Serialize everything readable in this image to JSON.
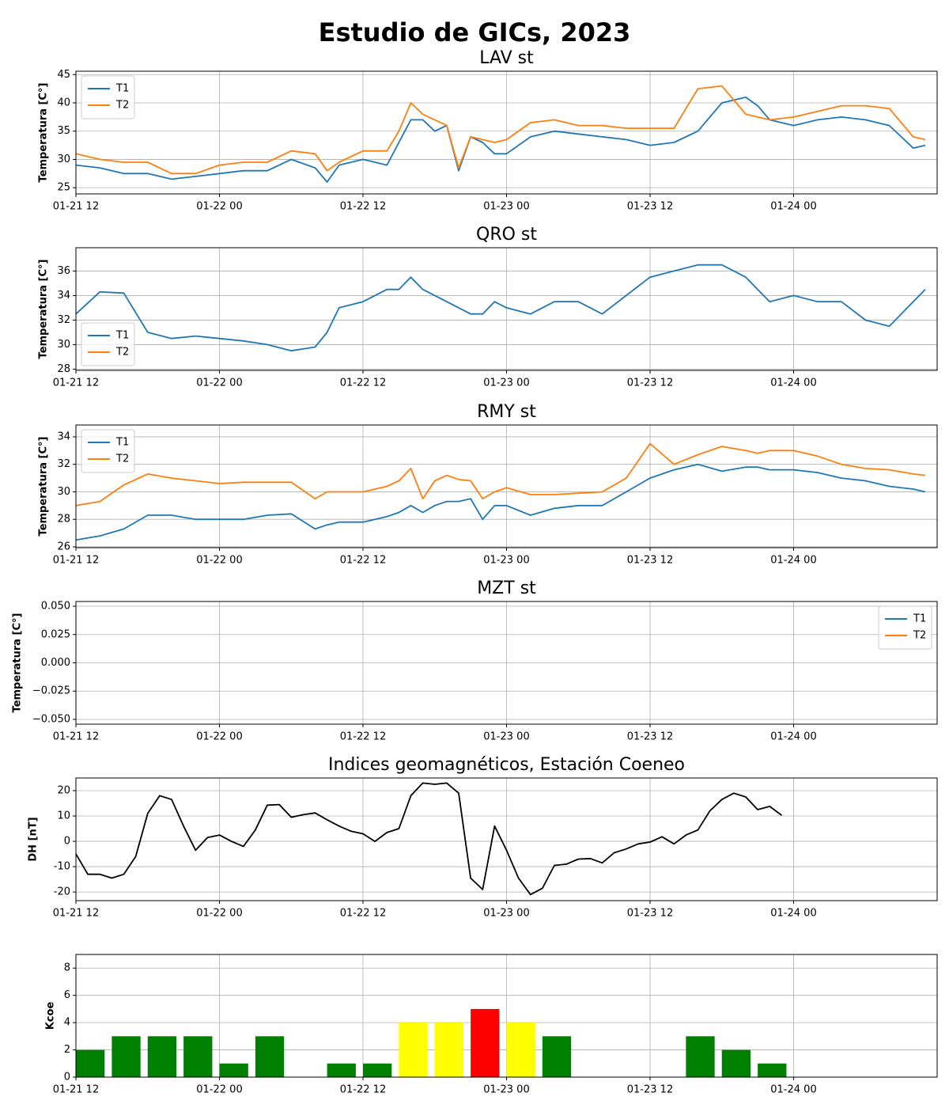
{
  "title": "Estudio de GICs, 2023",
  "chart_data": [
    {
      "type": "line",
      "title": "LAV st",
      "ylabel": "Temperatura [C°]",
      "legend": "upper left",
      "grid": true,
      "x": [
        "01-21 12",
        "01-21 14",
        "01-21 16",
        "01-21 18",
        "01-21 20",
        "01-21 22",
        "01-22 00",
        "01-22 02",
        "01-22 04",
        "01-22 06",
        "01-22 08",
        "01-22 09",
        "01-22 10",
        "01-22 12",
        "01-22 14",
        "01-22 15",
        "01-22 16",
        "01-22 17",
        "01-22 18",
        "01-22 19",
        "01-22 20",
        "01-22 21",
        "01-22 22",
        "01-22 23",
        "01-23 00",
        "01-23 02",
        "01-23 04",
        "01-23 06",
        "01-23 08",
        "01-23 10",
        "01-23 12",
        "01-23 14",
        "01-23 16",
        "01-23 18",
        "01-23 20",
        "01-23 21",
        "01-23 22",
        "01-24 00",
        "01-24 02",
        "01-24 04",
        "01-24 06",
        "01-24 08",
        "01-24 10",
        "01-24 11"
      ],
      "series": [
        {
          "name": "T1",
          "color": "#1f77b4",
          "values": [
            29,
            28.5,
            27.5,
            27.5,
            26.5,
            27,
            27.5,
            28,
            28,
            30,
            28.5,
            26,
            29,
            30,
            29,
            33,
            37,
            37,
            35,
            36,
            28,
            34,
            33,
            31,
            31,
            34,
            35,
            34.5,
            34,
            33.5,
            32.5,
            33,
            35,
            40,
            41,
            39.5,
            37,
            36,
            37,
            37.5,
            37,
            36,
            32,
            32.5
          ]
        },
        {
          "name": "T2",
          "color": "#ff7f0e",
          "values": [
            31,
            30,
            29.5,
            29.5,
            27.5,
            27.5,
            29,
            29.5,
            29.5,
            31.5,
            31,
            28,
            29.5,
            31.5,
            31.5,
            35,
            40,
            38,
            37,
            36,
            28.5,
            34,
            33.5,
            33,
            33.5,
            36.5,
            37,
            36,
            36,
            35.5,
            35.5,
            35.5,
            42.5,
            43,
            38,
            37.5,
            37,
            37.5,
            38.5,
            39.5,
            39.5,
            39,
            34,
            33.5
          ]
        }
      ],
      "xlim": [
        "01-21 12",
        "01-24 12"
      ],
      "xticks": [
        "01-21 12",
        "01-22 00",
        "01-22 12",
        "01-23 00",
        "01-23 12",
        "01-24 00"
      ],
      "ylim": [
        23.9,
        45.6
      ],
      "yticks": [
        25,
        30,
        35,
        40,
        45
      ]
    },
    {
      "type": "line",
      "title": "QRO st",
      "ylabel": "Temperatura [C°]",
      "legend": "lower left",
      "grid": true,
      "x": [
        "01-21 12",
        "01-21 14",
        "01-21 16",
        "01-21 18",
        "01-21 20",
        "01-21 22",
        "01-22 00",
        "01-22 02",
        "01-22 04",
        "01-22 06",
        "01-22 08",
        "01-22 09",
        "01-22 10",
        "01-22 12",
        "01-22 14",
        "01-22 15",
        "01-22 16",
        "01-22 17",
        "01-22 18",
        "01-22 19",
        "01-22 20",
        "01-22 21",
        "01-22 22",
        "01-22 23",
        "01-23 00",
        "01-23 02",
        "01-23 04",
        "01-23 06",
        "01-23 08",
        "01-23 10",
        "01-23 12",
        "01-23 14",
        "01-23 16",
        "01-23 18",
        "01-23 20",
        "01-23 21",
        "01-23 22",
        "01-24 00",
        "01-24 02",
        "01-24 04",
        "01-24 06",
        "01-24 08",
        "01-24 10",
        "01-24 11"
      ],
      "series": [
        {
          "name": "T1",
          "color": "#1f77b4",
          "values": [
            32.5,
            34.3,
            34.2,
            31,
            30.5,
            30.7,
            30.5,
            30.3,
            30,
            29.5,
            29.8,
            31,
            33,
            33.5,
            34.5,
            34.5,
            35.5,
            34.5,
            34,
            33.5,
            33,
            32.5,
            32.5,
            33.5,
            33,
            32.5,
            33.5,
            33.5,
            32.5,
            34,
            35.5,
            36,
            36.5,
            36.5,
            35.5,
            34.5,
            33.5,
            34,
            33.5,
            33.5,
            32,
            31.5,
            33.5,
            34.5
          ]
        },
        {
          "name": "T2",
          "color": "#ff7f0e",
          "values": [
            null,
            null,
            null,
            null,
            null,
            null,
            null,
            null,
            null,
            null,
            null,
            null,
            null,
            null,
            null,
            null,
            null,
            null,
            null,
            null,
            null,
            null,
            null,
            null,
            null,
            null,
            null,
            null,
            null,
            null,
            null,
            null,
            null,
            null,
            null,
            null,
            null,
            null,
            null,
            null,
            null,
            null,
            null,
            null
          ]
        }
      ],
      "xlim": [
        "01-21 12",
        "01-24 12"
      ],
      "xticks": [
        "01-21 12",
        "01-22 00",
        "01-22 12",
        "01-23 00",
        "01-23 12",
        "01-24 00"
      ],
      "ylim": [
        27.9,
        37.9
      ],
      "yticks": [
        28,
        30,
        32,
        34,
        36
      ]
    },
    {
      "type": "line",
      "title": "RMY st",
      "ylabel": "Temperatura [C°]",
      "legend": "upper left",
      "grid": true,
      "x": [
        "01-21 12",
        "01-21 14",
        "01-21 16",
        "01-21 18",
        "01-21 20",
        "01-21 22",
        "01-22 00",
        "01-22 02",
        "01-22 04",
        "01-22 06",
        "01-22 08",
        "01-22 09",
        "01-22 10",
        "01-22 12",
        "01-22 14",
        "01-22 15",
        "01-22 16",
        "01-22 17",
        "01-22 18",
        "01-22 19",
        "01-22 20",
        "01-22 21",
        "01-22 22",
        "01-22 23",
        "01-23 00",
        "01-23 02",
        "01-23 04",
        "01-23 06",
        "01-23 08",
        "01-23 10",
        "01-23 12",
        "01-23 14",
        "01-23 16",
        "01-23 18",
        "01-23 20",
        "01-23 21",
        "01-23 22",
        "01-24 00",
        "01-24 02",
        "01-24 04",
        "01-24 06",
        "01-24 08",
        "01-24 10",
        "01-24 11"
      ],
      "series": [
        {
          "name": "T1",
          "color": "#1f77b4",
          "values": [
            26.5,
            26.8,
            27.3,
            28.3,
            28.3,
            28,
            28,
            28,
            28.3,
            28.4,
            27.3,
            27.6,
            27.8,
            27.8,
            28.2,
            28.5,
            29,
            28.5,
            29,
            29.3,
            29.3,
            29.5,
            28,
            29,
            29,
            28.3,
            28.8,
            29,
            29,
            30,
            31,
            31.6,
            32,
            31.5,
            31.8,
            31.8,
            31.6,
            31.6,
            31.4,
            31,
            30.8,
            30.4,
            30.2,
            30
          ]
        },
        {
          "name": "T2",
          "color": "#ff7f0e",
          "values": [
            29,
            29.3,
            30.5,
            31.3,
            31,
            30.8,
            30.6,
            30.7,
            30.7,
            30.7,
            29.5,
            30,
            30,
            30,
            30.4,
            30.8,
            31.7,
            29.5,
            30.8,
            31.2,
            30.9,
            30.8,
            29.5,
            30,
            30.3,
            29.8,
            29.8,
            29.9,
            30,
            31,
            33.5,
            32,
            32.7,
            33.3,
            33,
            32.8,
            33,
            33,
            32.6,
            32,
            31.7,
            31.6,
            31.3,
            31.2
          ]
        }
      ],
      "xlim": [
        "01-21 12",
        "01-24 12"
      ],
      "xticks": [
        "01-21 12",
        "01-22 00",
        "01-22 12",
        "01-23 00",
        "01-23 12",
        "01-24 00"
      ],
      "ylim": [
        25.94,
        34.86
      ],
      "yticks": [
        26,
        28,
        30,
        32,
        34
      ]
    },
    {
      "type": "line",
      "title": "MZT st",
      "ylabel": "Temperatura [C°]",
      "legend": "upper right",
      "grid": true,
      "x": [],
      "series": [
        {
          "name": "T1",
          "color": "#1f77b4",
          "values": []
        },
        {
          "name": "T2",
          "color": "#ff7f0e",
          "values": []
        }
      ],
      "xlim": [
        "01-21 12",
        "01-24 12"
      ],
      "xticks": [
        "01-21 12",
        "01-22 00",
        "01-22 12",
        "01-23 00",
        "01-23 12",
        "01-24 00"
      ],
      "ylim": [
        -0.0542,
        0.0542
      ],
      "yticks": [
        {
          "value": -0.05,
          "label": "−0.050"
        },
        {
          "value": -0.025,
          "label": "−0.025"
        },
        {
          "value": 0,
          "label": "0.000"
        },
        {
          "value": 0.025,
          "label": "0.025"
        },
        {
          "value": 0.05,
          "label": "0.050"
        }
      ]
    },
    {
      "type": "line",
      "title": "Indices geomagnéticos, Estación Coeneo",
      "ylabel": "DH [nT]",
      "grid": true,
      "x": [
        "01-21 12",
        "01-21 13",
        "01-21 14",
        "01-21 15",
        "01-21 16",
        "01-21 17",
        "01-21 18",
        "01-21 19",
        "01-21 20",
        "01-21 21",
        "01-21 22",
        "01-21 23",
        "01-22 00",
        "01-22 01",
        "01-22 02",
        "01-22 03",
        "01-22 04",
        "01-22 05",
        "01-22 06",
        "01-22 07",
        "01-22 08",
        "01-22 09",
        "01-22 10",
        "01-22 11",
        "01-22 12",
        "01-22 13",
        "01-22 14",
        "01-22 15",
        "01-22 16",
        "01-22 17",
        "01-22 18",
        "01-22 19",
        "01-22 20",
        "01-22 21",
        "01-22 22",
        "01-22 23",
        "01-23 00",
        "01-23 01",
        "01-23 02",
        "01-23 03",
        "01-23 04",
        "01-23 05",
        "01-23 06",
        "01-23 07",
        "01-23 08",
        "01-23 09",
        "01-23 10",
        "01-23 11",
        "01-23 12",
        "01-23 13",
        "01-23 14",
        "01-23 15",
        "01-23 16",
        "01-23 17",
        "01-23 18",
        "01-23 19",
        "01-23 20",
        "01-23 21",
        "01-23 22",
        "01-23 23"
      ],
      "series": [
        {
          "name": "DH",
          "color": "#000000",
          "values": [
            -5,
            -13,
            -13,
            -14.5,
            -13,
            -6,
            11,
            18,
            16.5,
            6,
            -3.5,
            1.5,
            2.5,
            0,
            -2,
            4.5,
            14.3,
            14.5,
            9.5,
            10.5,
            11.2,
            8.5,
            6,
            4,
            3,
            0,
            3.5,
            5,
            18,
            23,
            22.5,
            23,
            19,
            -14.5,
            -19,
            6,
            -3.5,
            -14.5,
            -21,
            -18.5,
            -9.5,
            -9,
            -7,
            -6.8,
            -8.5,
            -4.5,
            -3,
            -1,
            -0.3,
            1.8,
            -1,
            2.5,
            4.5,
            12,
            16.5,
            19,
            17.5,
            12.5,
            13.8,
            10.3
          ]
        }
      ],
      "xlim": [
        "01-21 12",
        "01-24 12"
      ],
      "xticks": [
        "01-21 12",
        "01-22 00",
        "01-22 12",
        "01-23 00",
        "01-23 12",
        "01-24 00"
      ],
      "ylim": [
        -23.4,
        25
      ],
      "yticks": [
        -20,
        -10,
        0,
        10,
        20
      ]
    },
    {
      "type": "bar",
      "ylabel": "Kcoe",
      "grid": true,
      "x": [
        "01-21 12",
        "01-21 15",
        "01-21 18",
        "01-21 21",
        "01-22 00",
        "01-22 03",
        "01-22 06",
        "01-22 09",
        "01-22 12",
        "01-22 15",
        "01-22 18",
        "01-22 21",
        "01-23 00",
        "01-23 03",
        "01-23 06",
        "01-23 09",
        "01-23 12",
        "01-23 15",
        "01-23 18",
        "01-23 21"
      ],
      "values": [
        2,
        3,
        3,
        3,
        1,
        3,
        0,
        1,
        1,
        4,
        4,
        5,
        4,
        3,
        0,
        0,
        0,
        3,
        2,
        1
      ],
      "colors": [
        "green",
        "green",
        "green",
        "green",
        "green",
        "green",
        "green",
        "green",
        "green",
        "yellow",
        "yellow",
        "red",
        "yellow",
        "green",
        "green",
        "green",
        "green",
        "green",
        "green",
        "green"
      ],
      "xlim": [
        "01-21 12",
        "01-24 12"
      ],
      "xticks": [
        "01-21 12",
        "01-22 00",
        "01-22 12",
        "01-23 00",
        "01-23 12",
        "01-24 00"
      ],
      "ylim": [
        0,
        9
      ],
      "yticks": [
        0,
        2,
        4,
        6,
        8
      ]
    }
  ]
}
